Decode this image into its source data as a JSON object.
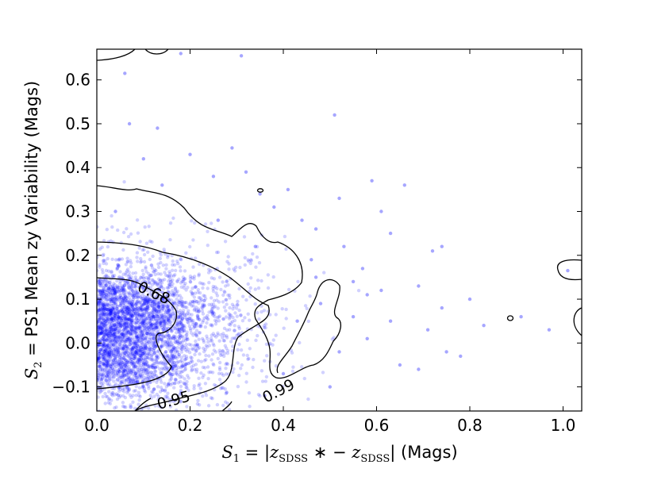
{
  "chart_data": {
    "type": "scatter",
    "title": "",
    "xlabel": {
      "s1": "S",
      "s1_sub": "1",
      "eq": " = |",
      "z1": "z",
      "z1_sub": "SDSS",
      "star": " ∗ − ",
      "z2": "z",
      "z2_sub": "SDSS",
      "close": "|",
      "units": " (Mags)"
    },
    "ylabel": {
      "s2": "S",
      "s2_sub": "2",
      "text": " = PS1 Mean zy Variability (Mags)"
    },
    "xlim": [
      0.0,
      1.04
    ],
    "ylim": [
      -0.155,
      0.67
    ],
    "xticks": [
      "0.0",
      "0.2",
      "0.4",
      "0.6",
      "0.8",
      "1.0"
    ],
    "yticks": [
      "−0.1",
      "0.0",
      "0.1",
      "0.2",
      "0.3",
      "0.4",
      "0.5",
      "0.6"
    ],
    "point_color": "#0000ff",
    "point_opacity": 0.18,
    "contour_color": "#000000",
    "contour_levels": [
      {
        "label": "0.68",
        "x": 0.125,
        "y": 0.11
      },
      {
        "label": "0.95",
        "x": 0.18,
        "y": -0.13
      },
      {
        "label": "0.99",
        "x": 0.405,
        "y": -0.105
      }
    ],
    "points_sparse": [
      [
        0.06,
        0.615
      ],
      [
        0.18,
        0.66
      ],
      [
        0.31,
        0.655
      ],
      [
        0.07,
        0.5
      ],
      [
        0.13,
        0.49
      ],
      [
        0.2,
        0.43
      ],
      [
        0.29,
        0.445
      ],
      [
        0.51,
        0.52
      ],
      [
        0.32,
        0.39
      ],
      [
        0.14,
        0.36
      ],
      [
        0.35,
        0.34
      ],
      [
        0.52,
        0.33
      ],
      [
        0.59,
        0.37
      ],
      [
        0.66,
        0.36
      ],
      [
        0.63,
        0.25
      ],
      [
        0.61,
        0.3
      ],
      [
        0.72,
        0.21
      ],
      [
        0.57,
        0.17
      ],
      [
        0.53,
        0.22
      ],
      [
        0.47,
        0.26
      ],
      [
        0.55,
        0.14
      ],
      [
        0.61,
        0.12
      ],
      [
        0.69,
        0.13
      ],
      [
        0.74,
        0.08
      ],
      [
        0.63,
        0.05
      ],
      [
        0.48,
        0.09
      ],
      [
        0.71,
        0.03
      ],
      [
        0.58,
        0.01
      ],
      [
        0.65,
        -0.05
      ],
      [
        0.52,
        -0.02
      ],
      [
        0.75,
        -0.02
      ],
      [
        0.8,
        0.1
      ],
      [
        0.83,
        0.04
      ],
      [
        0.69,
        -0.06
      ],
      [
        0.78,
        -0.03
      ],
      [
        0.97,
        0.03
      ],
      [
        0.91,
        0.06
      ],
      [
        1.01,
        0.165
      ],
      [
        0.74,
        0.22
      ],
      [
        0.41,
        0.35
      ],
      [
        0.44,
        0.28
      ],
      [
        0.38,
        0.31
      ],
      [
        0.25,
        0.38
      ],
      [
        0.1,
        0.42
      ],
      [
        0.04,
        0.3
      ],
      [
        0.46,
        0.19
      ],
      [
        0.43,
        0.05
      ],
      [
        0.4,
        -0.07
      ],
      [
        0.36,
        -0.12
      ],
      [
        0.5,
        -0.1
      ],
      [
        0.47,
        0.15
      ],
      [
        0.55,
        0.06
      ],
      [
        0.58,
        0.11
      ],
      [
        0.34,
        0.22
      ],
      [
        0.26,
        0.28
      ]
    ],
    "cluster_upper": {
      "center_x": 0.06,
      "center_y": 0.07,
      "spread_x": 0.09,
      "spread_y": 0.045,
      "count": 1400
    },
    "cluster_lower": {
      "center_x": 0.06,
      "center_y": -0.04,
      "spread_x": 0.09,
      "spread_y": 0.045,
      "count": 1100
    },
    "halo": {
      "center_x": 0.12,
      "center_y": 0.04,
      "spread_x": 0.14,
      "spread_y": 0.1,
      "count": 1200
    }
  }
}
